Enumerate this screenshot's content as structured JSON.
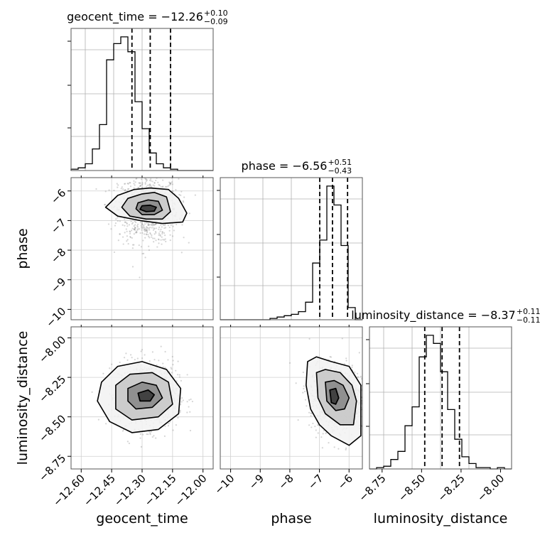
{
  "chart_data": {
    "type": "corner",
    "parameters": [
      {
        "name": "geocent_time",
        "range": [
          -12.65,
          -11.95
        ],
        "ticks": [
          -12.6,
          -12.45,
          -12.3,
          -12.15,
          -12.0
        ],
        "tick_labels": [
          "−12.60",
          "−12.45",
          "−12.30",
          "−12.15",
          "−12.00"
        ],
        "title_prefix": "geocent_time = ",
        "title_value": "−12.26",
        "title_plus": "+0.10",
        "title_minus": "−0.09",
        "quantiles": [
          -12.35,
          -12.26,
          -12.16
        ],
        "hist_counts": [
          0.01,
          0.02,
          0.05,
          0.16,
          0.34,
          0.82,
          0.94,
          0.99,
          0.88,
          0.51,
          0.31,
          0.13,
          0.05,
          0.02,
          0.01,
          0,
          0,
          0,
          0,
          0
        ]
      },
      {
        "name": "phase",
        "range": [
          -10.35,
          -5.55
        ],
        "ticks": [
          -10,
          -9,
          -8,
          -7,
          -6
        ],
        "tick_labels": [
          "−10",
          "−9",
          "−8",
          "−7",
          "−6"
        ],
        "title_prefix": "phase = ",
        "title_value": "−6.56",
        "title_plus": "+0.51",
        "title_minus": "−0.43",
        "quantiles": [
          -6.99,
          -6.56,
          -6.05
        ],
        "hist_counts": [
          0,
          0,
          0,
          0,
          0,
          0,
          0,
          0.01,
          0.02,
          0.03,
          0.04,
          0.06,
          0.13,
          0.42,
          0.59,
          0.99,
          0.85,
          0.55,
          0.09,
          0
        ]
      },
      {
        "name": "luminosity_distance",
        "range": [
          -8.83,
          -7.93
        ],
        "ticks": [
          -8.75,
          -8.5,
          -8.25,
          -8.0
        ],
        "tick_labels": [
          "−8.75",
          "−8.50",
          "−8.25",
          "−8.00"
        ],
        "title_prefix": "luminosity_distance = ",
        "title_value": "−8.37",
        "title_plus": "+0.11",
        "title_minus": "−0.11",
        "quantiles": [
          -8.48,
          -8.37,
          -8.26
        ],
        "hist_counts": [
          0,
          0.01,
          0.02,
          0.07,
          0.13,
          0.32,
          0.46,
          0.83,
          0.99,
          0.93,
          0.72,
          0.44,
          0.22,
          0.09,
          0.04,
          0.01,
          0.01,
          0,
          0.01,
          0
        ]
      }
    ],
    "pairs": [
      {
        "x": 0,
        "y": 1,
        "center": [
          -12.27,
          -6.6
        ],
        "spread": [
          0.07,
          0.55
        ],
        "contours": [
          [
            [
              -12.42,
              -6.15
            ],
            [
              -12.34,
              -5.95
            ],
            [
              -12.26,
              -5.9
            ],
            [
              -12.17,
              -5.95
            ],
            [
              -12.12,
              -6.25
            ],
            [
              -12.08,
              -6.75
            ],
            [
              -12.1,
              -7.05
            ],
            [
              -12.2,
              -7.1
            ],
            [
              -12.31,
              -7.0
            ],
            [
              -12.42,
              -6.85
            ],
            [
              -12.48,
              -6.55
            ]
          ],
          [
            [
              -12.37,
              -6.25
            ],
            [
              -12.3,
              -6.1
            ],
            [
              -12.24,
              -6.05
            ],
            [
              -12.18,
              -6.2
            ],
            [
              -12.16,
              -6.7
            ],
            [
              -12.2,
              -6.95
            ],
            [
              -12.28,
              -6.95
            ],
            [
              -12.36,
              -6.85
            ],
            [
              -12.4,
              -6.55
            ]
          ],
          [
            [
              -12.32,
              -6.4
            ],
            [
              -12.27,
              -6.3
            ],
            [
              -12.22,
              -6.35
            ],
            [
              -12.2,
              -6.65
            ],
            [
              -12.24,
              -6.8
            ],
            [
              -12.3,
              -6.8
            ],
            [
              -12.33,
              -6.6
            ]
          ],
          [
            [
              -12.3,
              -6.5
            ],
            [
              -12.26,
              -6.48
            ],
            [
              -12.23,
              -6.55
            ],
            [
              -12.24,
              -6.68
            ],
            [
              -12.28,
              -6.7
            ],
            [
              -12.31,
              -6.62
            ]
          ]
        ]
      },
      {
        "x": 0,
        "y": 2,
        "center": [
          -12.27,
          -8.36
        ],
        "spread": [
          0.07,
          0.1
        ],
        "contours": [
          [
            [
              -12.5,
              -8.28
            ],
            [
              -12.42,
              -8.18
            ],
            [
              -12.3,
              -8.15
            ],
            [
              -12.18,
              -8.2
            ],
            [
              -12.11,
              -8.32
            ],
            [
              -12.12,
              -8.48
            ],
            [
              -12.22,
              -8.58
            ],
            [
              -12.35,
              -8.6
            ],
            [
              -12.46,
              -8.53
            ],
            [
              -12.52,
              -8.4
            ]
          ],
          [
            [
              -12.43,
              -8.3
            ],
            [
              -12.36,
              -8.23
            ],
            [
              -12.25,
              -8.22
            ],
            [
              -12.17,
              -8.28
            ],
            [
              -12.15,
              -8.42
            ],
            [
              -12.22,
              -8.5
            ],
            [
              -12.35,
              -8.52
            ],
            [
              -12.43,
              -8.45
            ]
          ],
          [
            [
              -12.37,
              -8.32
            ],
            [
              -12.3,
              -8.28
            ],
            [
              -12.23,
              -8.3
            ],
            [
              -12.2,
              -8.38
            ],
            [
              -12.25,
              -8.44
            ],
            [
              -12.33,
              -8.45
            ],
            [
              -12.37,
              -8.4
            ]
          ],
          [
            [
              -12.32,
              -8.35
            ],
            [
              -12.27,
              -8.33
            ],
            [
              -12.24,
              -8.36
            ],
            [
              -12.26,
              -8.4
            ],
            [
              -12.31,
              -8.4
            ]
          ]
        ]
      },
      {
        "x": 1,
        "y": 2,
        "center": [
          -6.4,
          -8.38
        ],
        "spread": [
          0.45,
          0.1
        ],
        "contours": [
          [
            [
              -7.4,
              -8.15
            ],
            [
              -7.1,
              -8.12
            ],
            [
              -6.6,
              -8.15
            ],
            [
              -6.0,
              -8.18
            ],
            [
              -5.6,
              -8.3
            ],
            [
              -5.6,
              -8.62
            ],
            [
              -6.0,
              -8.68
            ],
            [
              -6.6,
              -8.62
            ],
            [
              -7.0,
              -8.55
            ],
            [
              -7.3,
              -8.45
            ],
            [
              -7.45,
              -8.3
            ]
          ],
          [
            [
              -7.1,
              -8.22
            ],
            [
              -6.8,
              -8.2
            ],
            [
              -6.3,
              -8.22
            ],
            [
              -5.9,
              -8.3
            ],
            [
              -5.75,
              -8.4
            ],
            [
              -5.85,
              -8.55
            ],
            [
              -6.3,
              -8.55
            ],
            [
              -6.8,
              -8.48
            ],
            [
              -7.05,
              -8.38
            ]
          ],
          [
            [
              -6.8,
              -8.28
            ],
            [
              -6.5,
              -8.27
            ],
            [
              -6.2,
              -8.3
            ],
            [
              -6.0,
              -8.38
            ],
            [
              -6.15,
              -8.45
            ],
            [
              -6.45,
              -8.46
            ],
            [
              -6.75,
              -8.4
            ]
          ],
          [
            [
              -6.65,
              -8.33
            ],
            [
              -6.45,
              -8.32
            ],
            [
              -6.35,
              -8.38
            ],
            [
              -6.45,
              -8.42
            ],
            [
              -6.6,
              -8.41
            ]
          ]
        ]
      }
    ]
  }
}
